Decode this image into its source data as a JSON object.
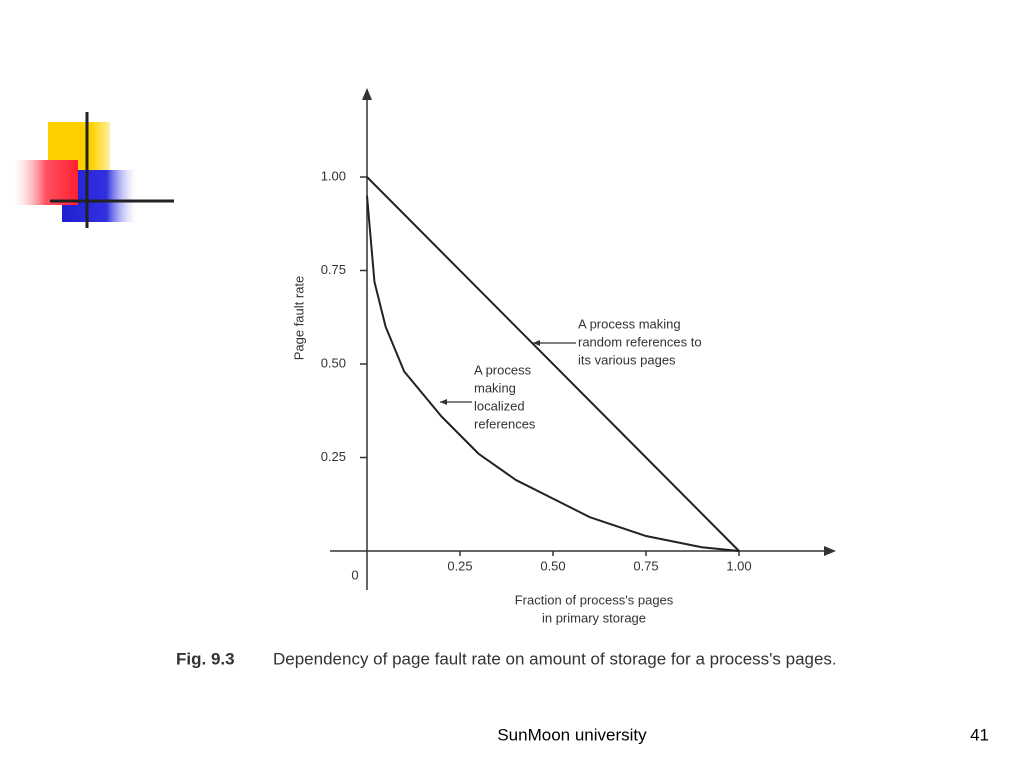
{
  "chart_data": {
    "type": "line",
    "ylabel": "Page fault rate",
    "xlabel": [
      "Fraction of process's pages",
      "in primary storage"
    ],
    "xlim": [
      0,
      1.25
    ],
    "ylim": [
      0,
      1.22
    ],
    "xticks": [
      0,
      0.25,
      {
        "value": 0.5,
        "label": "0.50"
      },
      0.75,
      {
        "value": 1,
        "label": "1.00"
      }
    ],
    "yticks": [
      0.25,
      {
        "value": 0.5,
        "label": "0.50"
      },
      0.75,
      {
        "value": 1,
        "label": "1.00"
      }
    ],
    "series": [
      {
        "color": "#222222",
        "x": [
          0,
          1
        ],
        "values": [
          1,
          0
        ]
      },
      {
        "color": "#222222",
        "x": [
          0,
          0.02,
          0.05,
          0.1,
          0.2,
          0.3,
          0.4,
          0.5,
          0.6,
          0.75,
          0.9,
          1.0
        ],
        "values": [
          0.95,
          0.72,
          0.6,
          0.48,
          0.36,
          0.26,
          0.19,
          0.14,
          0.09,
          0.04,
          0.01,
          0
        ]
      }
    ],
    "annotations": [
      {
        "text": [
          "A process making",
          "random references to",
          "its various pages"
        ]
      },
      {
        "text": [
          "A process",
          "making",
          "localized",
          "references"
        ]
      }
    ]
  },
  "caption": {
    "label": "Fig. 9.3",
    "text": "Dependency of page fault rate on amount of storage for a process's pages."
  },
  "footer": {
    "text": "SunMoon university",
    "page": "41"
  }
}
